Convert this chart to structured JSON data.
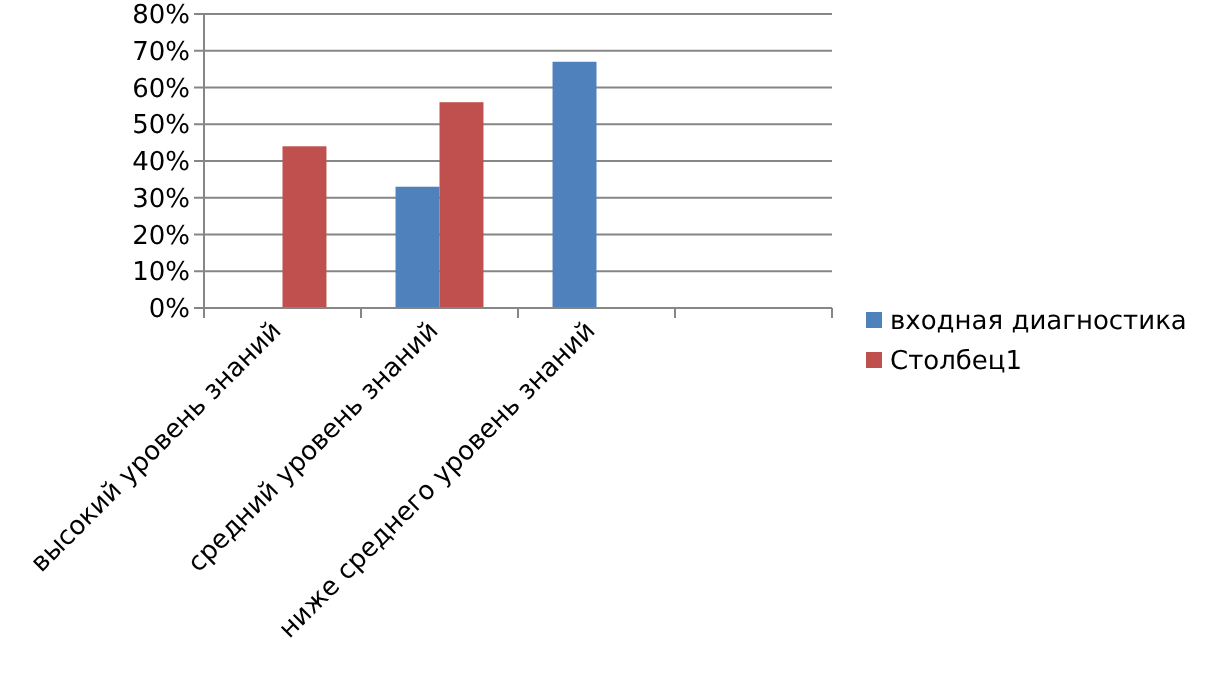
{
  "chart_data": {
    "type": "bar",
    "categories": [
      "высокий уровень знаний",
      "средний уровень знаний",
      "ниже среднего уровень знаний",
      null
    ],
    "series": [
      {
        "name": "входная диагностика",
        "color": "#4f81bd",
        "values": [
          null,
          33,
          67,
          null
        ]
      },
      {
        "name": "Столбец1",
        "color": "#c0504d",
        "values": [
          44,
          56,
          null,
          null
        ]
      }
    ],
    "ylim": [
      0,
      80
    ],
    "yticks": [
      {
        "value": 0,
        "label": "0%"
      },
      {
        "value": 10,
        "label": "10%"
      },
      {
        "value": 20,
        "label": "20%"
      },
      {
        "value": 30,
        "label": "30%"
      },
      {
        "value": 40,
        "label": "40%"
      },
      {
        "value": 50,
        "label": "50%"
      },
      {
        "value": 60,
        "label": "60%"
      },
      {
        "value": 70,
        "label": "70%"
      },
      {
        "value": 80,
        "label": "80%"
      }
    ],
    "grid": "y",
    "legend": "right"
  }
}
